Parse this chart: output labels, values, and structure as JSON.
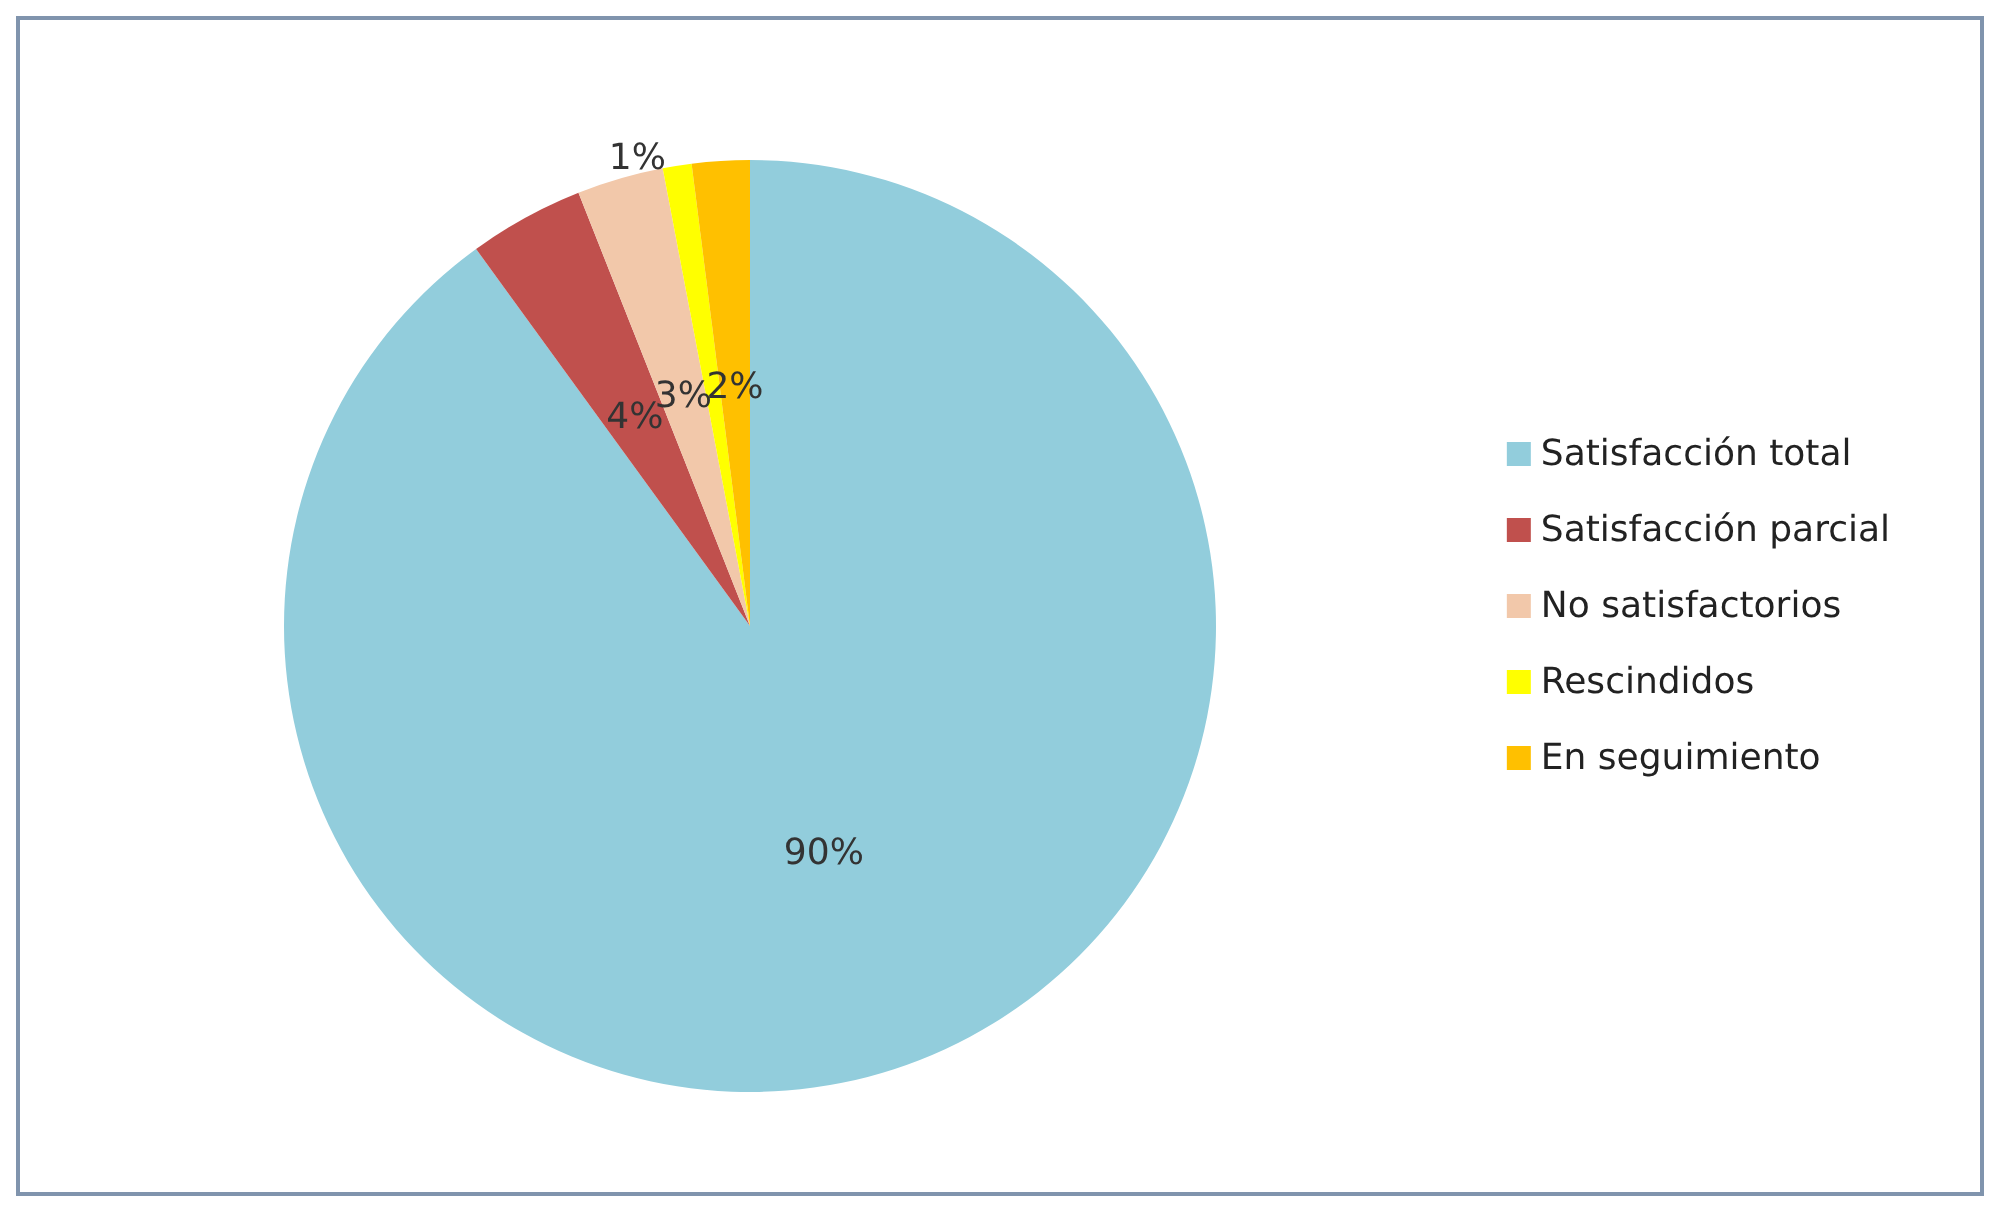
{
  "chart_data": {
    "type": "pie",
    "categories": [
      "Satisfacción total",
      "Satisfacción parcial",
      "No satisfactorios",
      "Rescindidos",
      "En seguimiento"
    ],
    "values": [
      90,
      4,
      3,
      1,
      2
    ],
    "colors": [
      "#92cddc",
      "#c0504d",
      "#f2c8aa",
      "#ffff00",
      "#ffc000"
    ],
    "value_labels": [
      "90%",
      "4%",
      "3%",
      "1%",
      "2%"
    ],
    "legend": "right"
  }
}
